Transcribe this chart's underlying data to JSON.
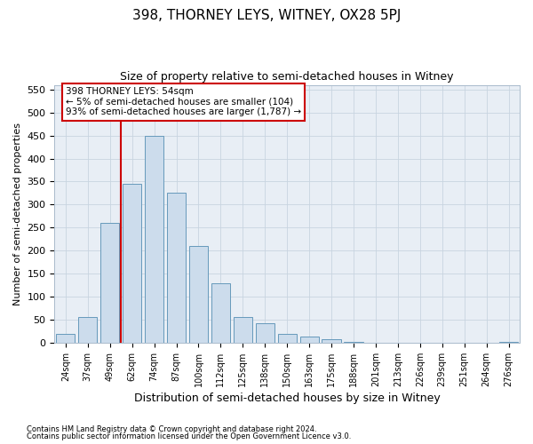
{
  "title": "398, THORNEY LEYS, WITNEY, OX28 5PJ",
  "subtitle": "Size of property relative to semi-detached houses in Witney",
  "xlabel": "Distribution of semi-detached houses by size in Witney",
  "ylabel": "Number of semi-detached properties",
  "categories": [
    "24sqm",
    "37sqm",
    "49sqm",
    "62sqm",
    "74sqm",
    "87sqm",
    "100sqm",
    "112sqm",
    "125sqm",
    "138sqm",
    "150sqm",
    "163sqm",
    "175sqm",
    "188sqm",
    "201sqm",
    "213sqm",
    "226sqm",
    "239sqm",
    "251sqm",
    "264sqm",
    "276sqm"
  ],
  "values": [
    20,
    55,
    260,
    345,
    450,
    325,
    210,
    130,
    55,
    43,
    20,
    13,
    7,
    2,
    0,
    0,
    0,
    0,
    0,
    0,
    2
  ],
  "bar_color": "#ccdcec",
  "bar_edge_color": "#6699bb",
  "vline_pos": 2.5,
  "vline_color": "#cc0000",
  "annotation_text": "398 THORNEY LEYS: 54sqm\n← 5% of semi-detached houses are smaller (104)\n93% of semi-detached houses are larger (1,787) →",
  "annotation_box_facecolor": "#ffffff",
  "annotation_box_edgecolor": "#cc0000",
  "ylim": [
    0,
    560
  ],
  "yticks": [
    0,
    50,
    100,
    150,
    200,
    250,
    300,
    350,
    400,
    450,
    500,
    550
  ],
  "footnote1": "Contains HM Land Registry data © Crown copyright and database right 2024.",
  "footnote2": "Contains public sector information licensed under the Open Government Licence v3.0.",
  "fig_facecolor": "#ffffff",
  "plot_facecolor": "#e8eef5",
  "grid_color": "#c8d4e0",
  "spine_color": "#aabbcc"
}
